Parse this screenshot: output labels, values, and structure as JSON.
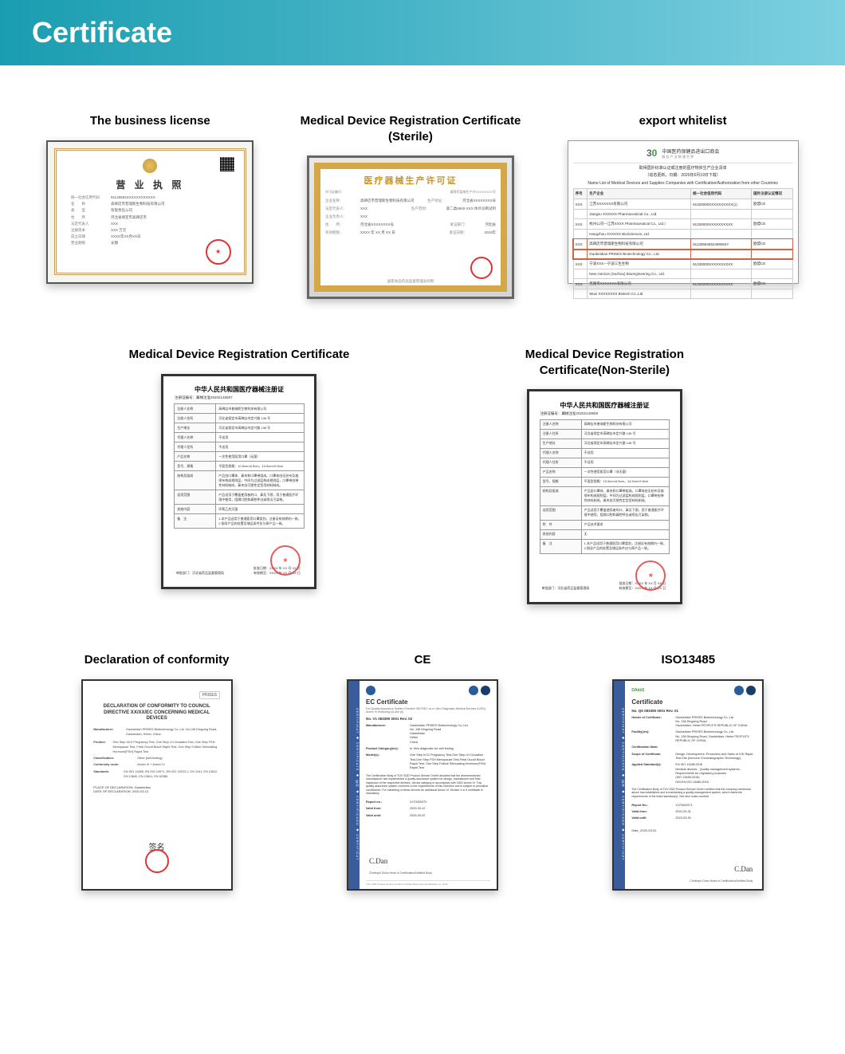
{
  "header": {
    "title": "Certificate"
  },
  "row1": {
    "biz": {
      "title": "The business license",
      "doc_header": "营 业 执 照",
      "fields": [
        {
          "k": "统一社会信用代码",
          "v": "91130684XXXXXXXXXXXX"
        },
        {
          "k": "名　　称",
          "v": "高碑店市普瑞斯生物科技有限公司"
        },
        {
          "k": "类　　型",
          "v": "有限责任公司"
        },
        {
          "k": "住　　所",
          "v": "河北省保定市高碑店市"
        },
        {
          "k": "法定代表人",
          "v": "XXX"
        },
        {
          "k": "注册资本",
          "v": "XXX 万元"
        },
        {
          "k": "成立日期",
          "v": "XXXX年XX月XX日"
        },
        {
          "k": "营业期限",
          "v": "长期"
        }
      ]
    },
    "sterile": {
      "title": "Medical Device Registration Certificate (Sterile)",
      "doc_header": "医疗器械生产许可证",
      "permit_label": "许可证编号：",
      "permit_label_right": "冀食药监械生产许XXXXXXXX号",
      "fields": [
        {
          "k": "企业名称：",
          "v": "高碑店市普瑞斯生物科技有限公司",
          "k2": "生产地址：",
          "v2": "河北省XXXXXXXX号"
        },
        {
          "k": "法定代表人：",
          "v": "XXX",
          "k2": "生产范围：",
          "v2": "第二类6840-XXX 体外诊断试剂"
        },
        {
          "k": "企业负责人：",
          "v": "XXX",
          "k2": "",
          "v2": ""
        },
        {
          "k": "住　　所：",
          "v": "河北省XXXXXXXX号",
          "k2": "发证部门：",
          "v2": "河北省"
        },
        {
          "k": "有效期限：",
          "v": "XXXX 年 XX 月 XX 日",
          "k2": "发证日期：",
          "v2": "2019年"
        }
      ],
      "footer": "国家食品药品监督管理总局制"
    },
    "export": {
      "title": "export whitelist",
      "logo_30": "30",
      "cccmhpie_cn": "中国医药保健品进出口商会",
      "cccmhpie_sub": "服 务 产 业    联 通 世 界",
      "sub1": "取得国外标准认证或注册的医疗物资生产企业清单",
      "sub2": "（动态更新，日期：2020年6月19日下载）",
      "sub3": "Name List of Medical Devices and Supplies Companies with Certification/Authorization from other Countries",
      "headers": [
        "序号",
        "生产企业",
        "统一社会信用代码",
        "国外注册认证情况"
      ],
      "rows": [
        {
          "n": "XXX",
          "c": "江苏XXXXXXX有限公司",
          "code": "91320000XXXXXXXXXX(1)",
          "s": "欧盟CE"
        },
        {
          "n": "",
          "c": "Jiangsu XXXXXX Pharmaceutical Co., Ltd.",
          "code": "",
          "s": ""
        },
        {
          "n": "XXX",
          "c": "杭州公司—江苏XXXX Pharmaceutical Co., Ltd.）",
          "code": "91330000XXXXXXXXXX",
          "s": "欧盟CE"
        },
        {
          "n": "",
          "c": "Hangzhou XXXXXX BioSciences, Ltd.",
          "code": "",
          "s": ""
        },
        {
          "n": "XXX",
          "c": "高碑店市普瑞斯生物科技有限公司",
          "code": "91130684552499064Y",
          "s": "欧盟CE",
          "hl": true
        },
        {
          "n": "",
          "c": "Gaobeidian PRISES Biotechnology Co., Ltd.",
          "code": "",
          "s": "",
          "hl": true
        },
        {
          "n": "XXX",
          "c": "宁波XXX—宁波三生生物",
          "code": "91330000XXXXXXXXXX",
          "s": "欧盟CE"
        },
        {
          "n": "",
          "c": "New Horizon (Suzhou) Bioengineering Co., Ltd.",
          "code": "",
          "s": ""
        },
        {
          "n": "XXX",
          "c": "无锡市XXXXXXX有限公司",
          "code": "91320200XXXXXXXXXX",
          "s": "欧盟CE"
        },
        {
          "n": "",
          "c": "Wuxi XXXXXXXX Biotech Co.,Ltd",
          "code": "",
          "s": ""
        }
      ]
    }
  },
  "row2": {
    "reg": {
      "title": "Medical Device Registration Certificate",
      "doc_title": "中华人民共和国医疗器械注册证",
      "doc_no_label": "注册证编号：",
      "doc_no": "冀械注准20202140607",
      "rows": [
        {
          "k": "注册人名称",
          "v": "高碑店市普瑞斯生物科技有限公司"
        },
        {
          "k": "注册人住所",
          "v": "河北省保定市高碑店市定兴路 138 号"
        },
        {
          "k": "生产地址",
          "v": "河北省保定市高碑店市定兴路 138 号"
        },
        {
          "k": "代理人名称",
          "v": "不适用"
        },
        {
          "k": "代理人住所",
          "v": "不适用"
        },
        {
          "k": "产品名称",
          "v": "一次性使用医用口罩（无菌）"
        },
        {
          "k": "型号、规格",
          "v": "平面型规格：10.5cm×6.5cm，14.5cm×9.5cm"
        },
        {
          "k": "结构及组成",
          "v": "产品由口罩体、鼻夹和口罩带组成。口罩体由无纺布及熔喷布构成规则层，中间为过滤层构成规则层，口罩带由弹性材料制成，鼻夹由可塑性定型用材料制成。"
        },
        {
          "k": "适用范围",
          "v": "产品适用于覆盖使用者的口、鼻及下颌，用于普通医疗环境中使用，阻隔口腔和鼻腔呼出或喷出污染物。"
        },
        {
          "k": "其他内容",
          "v": "环氧乙烷灭菌"
        },
        {
          "k": "备　注",
          "v": "1.本产品适用于普通医用口罩类别，注册证有效期内一致。\n2.指导产品的处置及储运条件应与原产品一致。"
        }
      ],
      "issuer": "审批部门：河北省药品监督管理局",
      "date_label": "批准日期：XXXX 年 XX 月 XX 日",
      "valid_label": "有效期至：XXXX 年 XX 月 XX 日"
    },
    "reg_ns": {
      "title": "Medical Device Registration Certificate(Non-Sterile)",
      "doc_title": "中华人民共和国医疗器械注册证",
      "doc_no_label": "注册证编号：",
      "doc_no": "冀械注准20202140608",
      "rows": [
        {
          "k": "注册人名称",
          "v": "高碑店市普瑞斯生物科技有限公司"
        },
        {
          "k": "注册人住所",
          "v": "河北省保定市高碑店市定兴路 138 号"
        },
        {
          "k": "生产地址",
          "v": "河北省保定市高碑店市定兴路 138 号"
        },
        {
          "k": "代理人名称",
          "v": "不适用"
        },
        {
          "k": "代理人住所",
          "v": "不适用"
        },
        {
          "k": "产品名称",
          "v": "一次性使用医用口罩（非无菌）"
        },
        {
          "k": "型号、规格",
          "v": "平面型规格：10.5cm×6.5cm，14.5cm×9.5cm"
        },
        {
          "k": "结构及组成",
          "v": "产品由口罩体、鼻夹和口罩带组成。口罩体由无纺布及熔喷布构成规则层，中间为过滤层构成规则层，口罩带由弹性材料制成，鼻夹由可塑性定型用材料制成。"
        },
        {
          "k": "适用范围",
          "v": "产品适用于覆盖使用者的口、鼻及下颌，用于普通医疗环境中使用，阻隔口腔和鼻腔呼出或喷出污染物。"
        },
        {
          "k": "附　件",
          "v": "产品技术要求"
        },
        {
          "k": "其他内容",
          "v": "无"
        },
        {
          "k": "备　注",
          "v": "1.本产品适用于普通医用口罩类别，注册证有效期内一致。\n2.指导产品的处置及储运条件应与原产品一致。"
        }
      ],
      "issuer": "审批部门：河北省药品监督管理局",
      "date_label": "批准日期：XXXX 年 XX 月 XX 日",
      "valid_label": "有效期至：XXXX 年 XX 月 XX 日"
    }
  },
  "row3": {
    "doc": {
      "title": "Declaration of conformity",
      "logo": "PRISES",
      "doc_title": "DECLARATION OF CONFORMITY TO COUNCIL DIRECTIVE XX/XX/EC CONCERNING MEDICAL DEVICES",
      "fields": [
        {
          "k": "Manufacturer:",
          "v": "Gaobeidian PRISES Biotechnology Co.,Ltd. No.138 Dingxing Road, Gaobeidian, Hebei, China"
        },
        {
          "k": "",
          "v": ""
        },
        {
          "k": "Product:",
          "v": "One Step hCG Pregnancy Test, One Step LH Ovulation Test, One Step FSH Menopause Test, Fetal Occult Blood Rapid Test, One Step Follicle Stimulating Hormone(FSH) Rapid Test"
        },
        {
          "k": "Classification:",
          "v": "Other (self-testing)"
        },
        {
          "k": "Conformity route:",
          "v": "Annex III + Annex IV"
        },
        {
          "k": "Standards:",
          "v": "EN ISO 13485, EN ISO 14971, EN ISO 15223-1, EN 1041, EN 13612, EN 13640, EN 13641, EN 62366"
        }
      ],
      "place": "PLACE OF DECLARATION: Gaobeidian",
      "date": "DATE OF DECLARATION: 2020-03-12",
      "sign": "签名"
    },
    "ce": {
      "title": "CE",
      "sidebar": "ZERTIFIKAT ◆ CERTIFICATE ◆ 证书 ◆ CERTIFICADO ◆ CERTIFICAT",
      "doc_title": "EC Certificate",
      "sub": "Full Quality Assurance System Directive 98/79/EC on In Vitro Diagnostic Medical Devices (IVDD), Annex IV excluding (4) and (6)",
      "no": "No. V1 083390 0001 Rev. 02",
      "fields": [
        {
          "k": "Manufacturer:",
          "v": "Gaobeidian PRISES Biotechnology Co.,Ltd.\nNo. 138 Dingxing Road\nGaobeidian\nHebei\nChina"
        },
        {
          "k": "Product Category(ies):",
          "v": "In Vitro diagnostic for self testing"
        },
        {
          "k": "Model(s):",
          "v": "One Step hCG Pregnancy Test,One Step LH Ovulation Test,One Step FSH Menopause Test,Fetal Occult Blood Rapid Test, One Step Follicle Stimulating Hormone(FSH) Rapid Test"
        }
      ],
      "body": "The Certification Body of TÜV SÜD Product Service GmbH declares that the aforementioned manufacturer has implemented a quality assurance system for design, manufacture and final inspection of the respective devices / device category in accordance with IVDD Annex IV. This quality assurance system conforms to the requirements of this Directive and is subject to periodical surveillance. For marketing of these devices an additional Annex IV, Section 4 or 6 certificate is mandatory.",
      "report_label": "Report no.:",
      "report": "XJ70000370",
      "valid_from_label": "Valid from:",
      "valid_from": "2020-03-12",
      "valid_to_label": "Valid until:",
      "valid_to": "2025-03-02",
      "sign": "C.Dan",
      "sign_name": "Christoph Dicks\nHead of Certification/Notified Body",
      "footer": "TÜV SÜD Product Service GmbH is Notified Body with identification no. 0123"
    },
    "iso": {
      "title": "ISO13485",
      "sidebar": "ZERTIFIKAT ◆ CERTIFICATE ◆ 证书 ◆ CERTIFICADO ◆ CERTIFICAT",
      "doc_title": "Certificate",
      "no": "No. Q5 083390 0001 Rev. 01",
      "fields": [
        {
          "k": "Holder of Certificate:",
          "v": "Gaobeidian PRISES Biotechnology Co.,Ltd.\nNo. 138 Dingxing Road\nGaobeidian, Hebei PEOPLE'S REPUBLIC OF CHINA"
        },
        {
          "k": "Facility(ies):",
          "v": "Gaobeidian PRISES Biotechnology Co.,Ltd.\nNo. 138 Dingxing Road, Gaobeidian, Hebei PEOPLE'S REPUBLIC OF CHINA"
        },
        {
          "k": "Certification Mark:",
          "v": ""
        },
        {
          "k": "Scope of Certificate:",
          "v": "Design, Development, Production and Sales of IVD Rapid Test Kits (Immune Chromatographic Technology)"
        },
        {
          "k": "Applied Standard(s):",
          "v": "EN ISO 13485:2016\nMedical devices - Quality management systems - Requirements for regulatory purposes\n(ISO 13485:2016)\nDIN EN ISO 13485:2016"
        }
      ],
      "body": "The Certification Body of TÜV SÜD Product Service GmbH certifies that the company mentioned above has established and is maintaining a quality management system, which meets the requirements of the listed standard(s). See also notes overleaf.",
      "report_label": "Report No.:",
      "report": "XJ70000371",
      "valid_from_label": "Valid from:",
      "valid_from": "2020-03-31",
      "valid_to_label": "Valid until:",
      "valid_to": "2023-03-30",
      "date_label": "Date,",
      "date": "2020-03-31",
      "sign": "C.Dan",
      "sign_name": "Christoph Dicks\nHead of Certification/Notified Body"
    }
  }
}
